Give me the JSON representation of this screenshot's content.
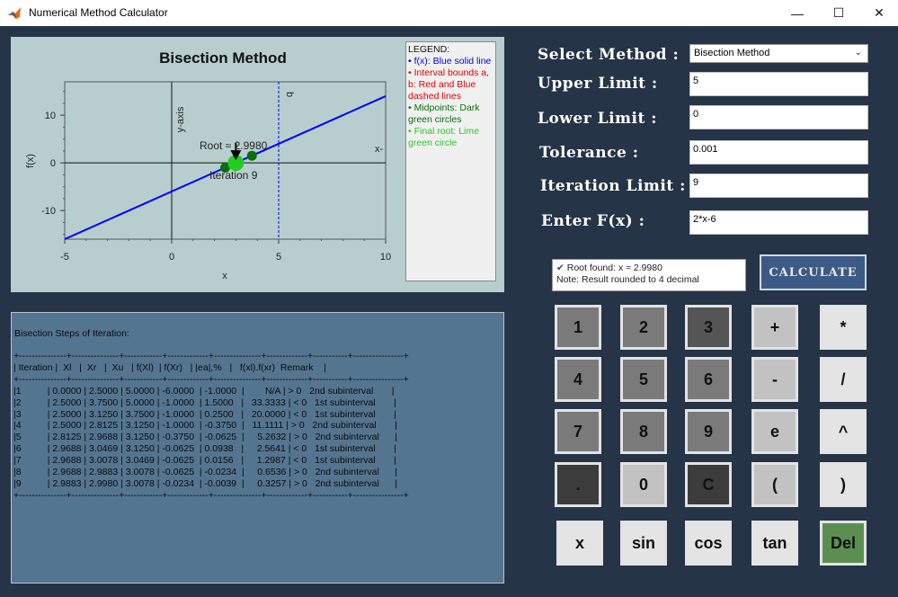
{
  "window": {
    "title": "Numerical Method Calculator",
    "minimize_glyph": "—",
    "maximize_glyph": "☐",
    "close_glyph": "✕"
  },
  "plot": {
    "title": "Bisection Method",
    "xlabel": "x",
    "ylabel": "f(x)",
    "root_label": "Root ≈ 2.9980",
    "iteration_label": "Iteration 9",
    "y_axis_label": "y-axis",
    "x_axis_label": "x-",
    "b_label": "b"
  },
  "chart_data": {
    "type": "line",
    "xlim": [
      -5,
      10
    ],
    "ylim": [
      -16,
      17
    ],
    "xticks": [
      "-5",
      "0",
      "5",
      "10"
    ],
    "yticks": [
      "10",
      "0",
      "-10"
    ],
    "series": [
      {
        "name": "f(x)",
        "x": [
          -5,
          10
        ],
        "y": [
          -16,
          14
        ],
        "color": "#0000ff"
      }
    ],
    "bounds": {
      "b": 5
    },
    "midpoints": [
      {
        "x": 2.5,
        "y": -1.0
      },
      {
        "x": 3.75,
        "y": 1.5
      }
    ],
    "root": {
      "x": 2.998,
      "y": -0.0039
    },
    "colors": {
      "line": "#0000ff",
      "bound": "#0000ff",
      "midpoint": "#0a6e0a",
      "root": "#22cc22"
    }
  },
  "legend": {
    "title": "LEGEND:",
    "items": [
      {
        "text": "• f(x): Blue solid line",
        "color": "#0000dd"
      },
      {
        "text": "• Interval bounds a, b: Red and Blue dashed lines",
        "color": "#e00000"
      },
      {
        "text": "• Midpoints: Dark green circles",
        "color": "#0a6e0a"
      },
      {
        "text": "• Final root: Lime green circle",
        "color": "#22cc22"
      }
    ]
  },
  "steps": {
    "title": "Bisection Steps of Iteration:",
    "text": "+---------------+---------------+------------+-------------+---------------+-------------+-----------+----------------+\n| Iteration |  Xl   |  Xr   |  Xu   | f(Xl)  | f(Xr)   | |ea|,%   |   f(xl).f(xr)  Remark    |\n+---------------+---------------+------------+-------------+---------------+-------------+-----------+----------------+\n|1          | 0.0000 | 2.5000 | 5.0000 | -6.0000  | -1.0000  |        N/A | > 0   2nd subinterval       |\n|2          | 2.5000 | 3.7500 | 5.0000 | -1.0000  | 1.5000   |   33.3333 | < 0   1st subinterval       |\n|3          | 2.5000 | 3.1250 | 3.7500 | -1.0000  | 0.2500   |   20.0000 | < 0   1st subinterval       |\n|4          | 2.5000 | 2.8125 | 3.1250 | -1.0000  | -0.3750  |   11.1111 | > 0   2nd subinterval       |\n|5          | 2.8125 | 2.9688 | 3.1250 | -0.3750  | -0.0625  |     5.2632 | > 0   2nd subinterval      |\n|6          | 2.9688 | 3.0469 | 3.1250 | -0.0625  | 0.0938   |     2.5641 | < 0   1st subinterval       |\n|7          | 2.9688 | 3.0078 | 3.0469 | -0.0625  | 0.0156   |     1.2987 | < 0   1st subinterval       |\n|8          | 2.9688 | 2.9883 | 3.0078 | -0.0625  | -0.0234  |     0.6536 | > 0   2nd subinterval      |\n|9          | 2.9883 | 2.9980 | 3.0078 | -0.0234  | -0.0039  |     0.3257 | > 0   2nd subinterval      |\n+---------------+---------------+------------+-------------+---------------+-------------+-----------+----------------+"
  },
  "form": {
    "method_label": "Select Method :",
    "method_value": "Bisection Method",
    "upper_label": "Upper Limit :",
    "upper_value": "5",
    "lower_label": "Lower Limit :",
    "lower_value": "0",
    "tolerance_label": "Tolerance :",
    "tolerance_value": "0.001",
    "iteration_label": "Iteration Limit :",
    "iteration_value": "9",
    "function_label": "Enter F(x) :",
    "function_value": "2*x-6"
  },
  "result": {
    "line1": "Root found: x ≈ 2.9980",
    "line2": "Note: Result rounded to 4 decimal"
  },
  "calculate_label": "CALCULATE",
  "keypad": {
    "k1": "1",
    "k2": "2",
    "k3": "3",
    "kplus": "+",
    "kmul": "*",
    "k4": "4",
    "k5": "5",
    "k6": "6",
    "kminus": "-",
    "kdiv": "/",
    "k7": "7",
    "k8": "8",
    "k9": "9",
    "ke": "e",
    "kpow": "^",
    "kdot": ".",
    "k0": "0",
    "kc": "C",
    "klparen": "(",
    "krparen": ")",
    "kx": "x",
    "ksin": "sin",
    "kcos": "cos",
    "ktan": "tan",
    "kdel": "Del"
  }
}
